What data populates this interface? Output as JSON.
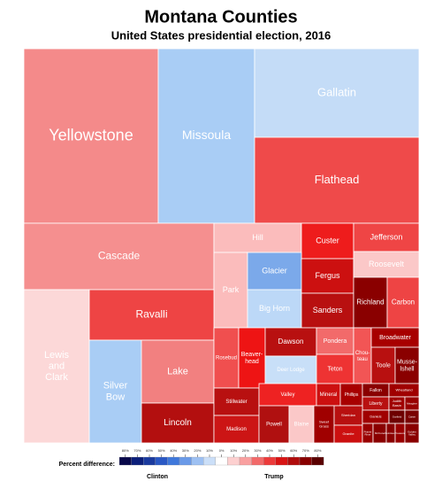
{
  "header": {
    "title": "Montana Counties",
    "subtitle": "United States presidential election, 2016"
  },
  "counties": [
    {
      "label": "Yellowstone",
      "color": "#f48a8a"
    },
    {
      "label": "Missoula",
      "color": "#a9cdf5"
    },
    {
      "label": "Gallatin",
      "color": "#c4dcf7"
    },
    {
      "label": "Flathead",
      "color": "#ef4a4a"
    },
    {
      "label": "Cascade",
      "color": "#f58f8f"
    },
    {
      "label": "Hill",
      "color": "#fbbcbc"
    },
    {
      "label": "Custer",
      "color": "#ee1c1c"
    },
    {
      "label": "Jefferson",
      "color": "#ef4545"
    },
    {
      "label": "Park",
      "color": "#fbbcbc"
    },
    {
      "label": "Glacier",
      "color": "#7ba9ea"
    },
    {
      "label": "Big Horn",
      "color": "#bcd8f7"
    },
    {
      "label": "Fergus",
      "color": "#cc1010"
    },
    {
      "label": "Roosevelt",
      "color": "#fbc8c8"
    },
    {
      "label": "Sanders",
      "color": "#b81010"
    },
    {
      "label": "Richland",
      "color": "#8a0000"
    },
    {
      "label": "Carbon",
      "color": "#ee4444"
    },
    {
      "label": "Lewis and Clark",
      "color": "#fcd8d8"
    },
    {
      "label": "Ravalli",
      "color": "#ee4444"
    },
    {
      "label": "Silver Bow",
      "color": "#a9cdf5"
    },
    {
      "label": "Lake",
      "color": "#f28080"
    },
    {
      "label": "Lincoln",
      "color": "#b30f0f"
    },
    {
      "label": "Rosebud",
      "color": "#f04f4f"
    },
    {
      "label": "Beaver-head",
      "color": "#ee1414"
    },
    {
      "label": "Dawson",
      "color": "#b81010"
    },
    {
      "label": "Deer Lodge",
      "color": "#c8dff8"
    },
    {
      "label": "Pondera",
      "color": "#f26a6a"
    },
    {
      "label": "Teton",
      "color": "#ee3333"
    },
    {
      "label": "Chou-teau",
      "color": "#f25555"
    },
    {
      "label": "Broadwater",
      "color": "#a80000"
    },
    {
      "label": "Toole",
      "color": "#b81010"
    },
    {
      "label": "Musse-lshell",
      "color": "#8a0000"
    },
    {
      "label": "Stillwater",
      "color": "#b81010"
    },
    {
      "label": "Valley",
      "color": "#ee2222"
    },
    {
      "label": "Mineral",
      "color": "#cc1010"
    },
    {
      "label": "Phillips",
      "color": "#a80000"
    },
    {
      "label": "Fallon",
      "color": "#8a0000"
    },
    {
      "label": "Wheatland",
      "color": "#a00000"
    },
    {
      "label": "Liberty",
      "color": "#b81010"
    },
    {
      "label": "Judith Basin",
      "color": "#a00000"
    },
    {
      "label": "Meagher",
      "color": "#990000"
    },
    {
      "label": "Madison",
      "color": "#cc1515"
    },
    {
      "label": "Powell",
      "color": "#b01010"
    },
    {
      "label": "Blaine",
      "color": "#fbc8c8"
    },
    {
      "label": "Sweet Grass",
      "color": "#a00000"
    },
    {
      "label": "Sheridan",
      "color": "#b81010"
    },
    {
      "label": "Granite",
      "color": "#cc1010"
    },
    {
      "label": "Daniels",
      "color": "#a00000"
    },
    {
      "label": "Garfield",
      "color": "#6e0000"
    },
    {
      "label": "Carter",
      "color": "#7a0000"
    },
    {
      "label": "Prairie River",
      "color": "#990000"
    },
    {
      "label": "McCone",
      "color": "#8a0000"
    },
    {
      "label": "Petroleum",
      "color": "#8a0000"
    },
    {
      "label": "Treasure",
      "color": "#990000"
    },
    {
      "label": "Golden Valley",
      "color": "#8a0000"
    }
  ],
  "legend": {
    "title": "Percent difference:",
    "left": "Clinton",
    "right": "Trump",
    "ticks": [
      "80%",
      "70%",
      "60%",
      "50%",
      "40%",
      "30%",
      "20%",
      "10%",
      "0%",
      "10%",
      "20%",
      "30%",
      "40%",
      "50%",
      "60%",
      "70%",
      "80%"
    ],
    "colors": [
      "#08084a",
      "#0c1f7a",
      "#1a3a9e",
      "#2a58c4",
      "#3f78db",
      "#6a9ae8",
      "#9dc0f2",
      "#cbdff8",
      "#ffffff",
      "#fdd0d0",
      "#f9a0a0",
      "#f26a6a",
      "#ec3a3a",
      "#d81414",
      "#b00c0c",
      "#880000",
      "#5a0000"
    ]
  }
}
